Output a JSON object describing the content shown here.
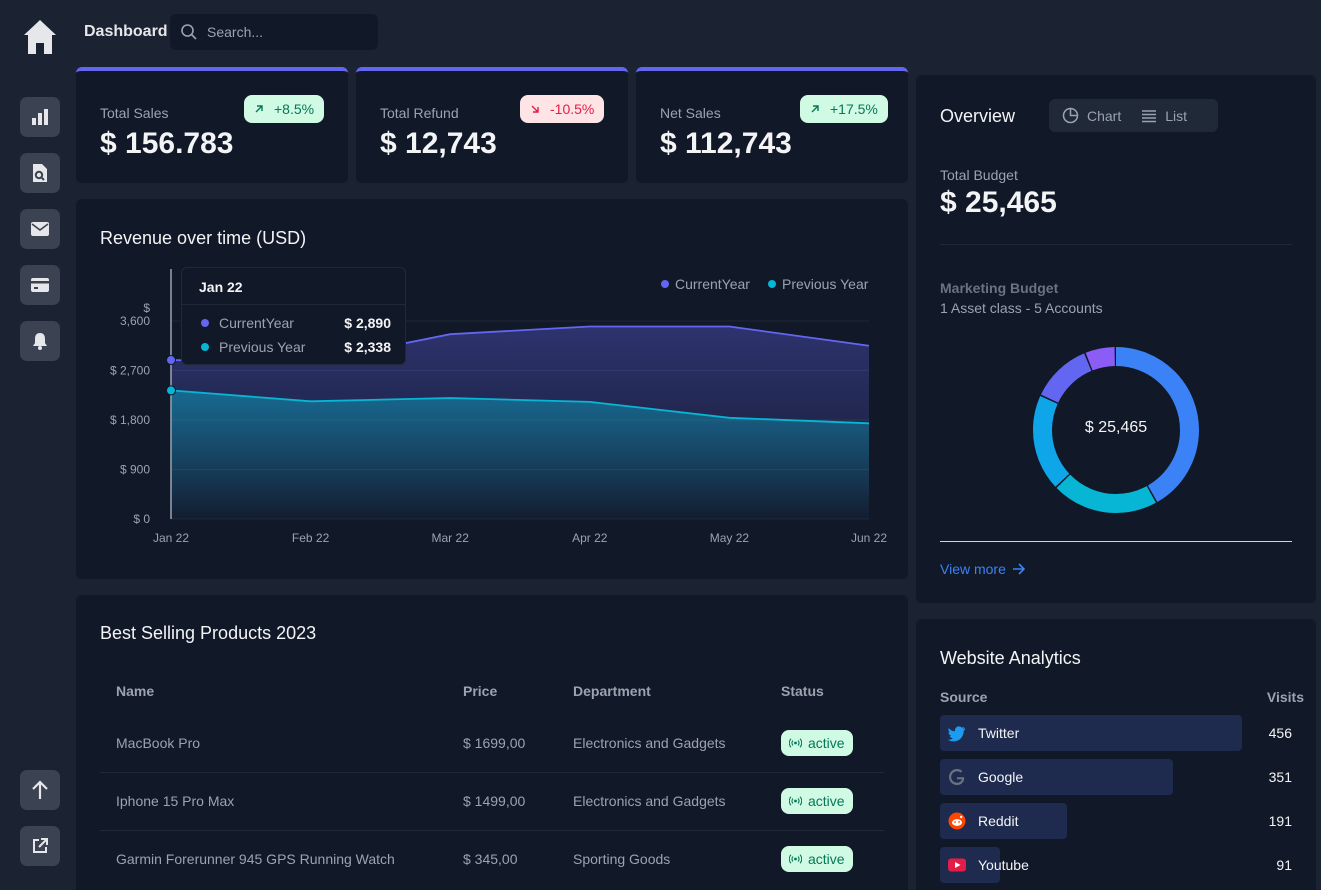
{
  "header": {
    "title": "Dashboard",
    "search_placeholder": "Search..."
  },
  "sidebar": {
    "items": [
      {
        "icon": "chart-bar-icon"
      },
      {
        "icon": "document-search-icon"
      },
      {
        "icon": "mail-icon"
      },
      {
        "icon": "credit-card-icon"
      },
      {
        "icon": "bell-icon"
      }
    ],
    "bottom": [
      {
        "icon": "arrow-up-icon"
      },
      {
        "icon": "external-link-icon"
      }
    ]
  },
  "kpis": [
    {
      "label": "Total Sales",
      "value": "$ 156.783",
      "change": "+8.5%",
      "trend": "up"
    },
    {
      "label": "Total Refund",
      "value": "$ 12,743",
      "change": "-10.5%",
      "trend": "down"
    },
    {
      "label": "Net Sales",
      "value": "$ 112,743",
      "change": "+17.5%",
      "trend": "up"
    }
  ],
  "revenue": {
    "title": "Revenue over time (USD)",
    "legend": [
      "CurrentYear",
      "Previous Year"
    ],
    "tooltip": {
      "date": "Jan 22",
      "rows": [
        {
          "label": "CurrentYear",
          "value": "$ 2,890"
        },
        {
          "label": "Previous Year",
          "value": "$ 2,338"
        }
      ]
    }
  },
  "chart_data": {
    "type": "area",
    "title": "Revenue over time (USD)",
    "x": [
      "Jan 22",
      "Feb 22",
      "Mar 22",
      "Apr 22",
      "May 22",
      "Jun 22"
    ],
    "y_ticks": [
      "$ 0",
      "$ 900",
      "$ 1,800",
      "$ 2,700",
      "3,600"
    ],
    "y_unit_label": "$",
    "ylim": [
      0,
      3600
    ],
    "grid": true,
    "legend_position": "top-right",
    "series": [
      {
        "name": "CurrentYear",
        "color": "#6366f1",
        "values": [
          2890,
          2850,
          3360,
          3500,
          3500,
          3150
        ]
      },
      {
        "name": "Previous Year",
        "color": "#06b6d4",
        "values": [
          2338,
          2140,
          2200,
          2130,
          1840,
          1740
        ]
      }
    ]
  },
  "products": {
    "title": "Best Selling Products 2023",
    "columns": [
      "Name",
      "Price",
      "Department",
      "Status"
    ],
    "rows": [
      {
        "name": "MacBook Pro",
        "price": "$ 1699,00",
        "department": "Electronics and Gadgets",
        "status": "active"
      },
      {
        "name": "Iphone 15 Pro Max",
        "price": "$ 1499,00",
        "department": "Electronics and Gadgets",
        "status": "active"
      },
      {
        "name": "Garmin Forerunner 945 GPS Running Watch",
        "price": "$ 345,00",
        "department": "Sporting Goods",
        "status": "active"
      }
    ]
  },
  "overview": {
    "title": "Overview",
    "tabs": [
      "Chart",
      "List"
    ],
    "total_budget_label": "Total Budget",
    "total_budget_value": "$ 25,465",
    "marketing_label": "Marketing Budget",
    "marketing_sub": "1 Asset class - 5 Accounts",
    "donut_center": "$ 25,465",
    "donut_segments": [
      {
        "color": "#3b82f6",
        "value": 0.42
      },
      {
        "color": "#06b6d4",
        "value": 0.21
      },
      {
        "color": "#0ea5e9",
        "value": 0.19
      },
      {
        "color": "#6366f1",
        "value": 0.12
      },
      {
        "color": "#8b5cf6",
        "value": 0.06
      }
    ],
    "view_more": "View more"
  },
  "analytics": {
    "title": "Website Analytics",
    "col_source": "Source",
    "col_visits": "Visits",
    "rows": [
      {
        "source": "Twitter",
        "visits": "456",
        "icon": "twitter-icon",
        "share": 1.0
      },
      {
        "source": "Google",
        "visits": "351",
        "icon": "google-icon",
        "share": 0.77
      },
      {
        "source": "Reddit",
        "visits": "191",
        "icon": "reddit-icon",
        "share": 0.42
      },
      {
        "source": "Youtube",
        "visits": "91",
        "icon": "youtube-icon",
        "share": 0.2
      }
    ]
  }
}
